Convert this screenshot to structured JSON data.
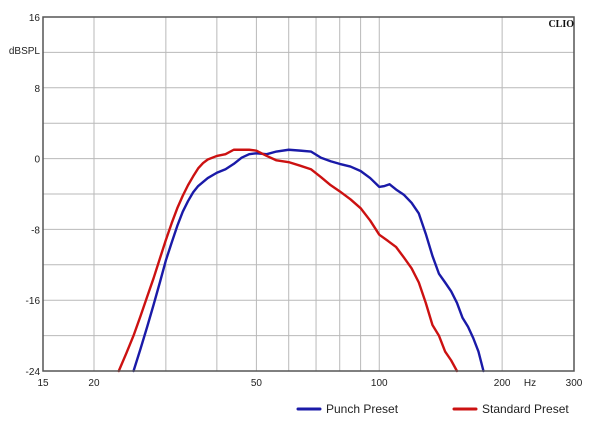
{
  "chart_data": {
    "type": "line",
    "title": "",
    "brand": "CLIO",
    "xlabel": "Hz",
    "ylabel": "dBSPL",
    "x_scale": "log",
    "xlim": [
      15,
      300
    ],
    "ylim": [
      -24,
      16
    ],
    "grid": true,
    "legend_position": "bottom-right",
    "x_tick_labels": [
      {
        "value": 15,
        "label": "15"
      },
      {
        "value": 20,
        "label": "20"
      },
      {
        "value": 50,
        "label": "50"
      },
      {
        "value": 100,
        "label": "100"
      },
      {
        "value": 200,
        "label": "200"
      },
      {
        "value": 300,
        "label": "300"
      }
    ],
    "y_tick_labels": [
      {
        "value": 16,
        "label": "16"
      },
      {
        "value": 8,
        "label": "8"
      },
      {
        "value": 0,
        "label": "0"
      },
      {
        "value": -8,
        "label": "-8"
      },
      {
        "value": -16,
        "label": "-16"
      },
      {
        "value": -24,
        "label": "-24"
      }
    ],
    "x_minor_grid": [
      30,
      40,
      60,
      70,
      80,
      90
    ],
    "y_grid": [
      -20,
      -12,
      -4,
      4,
      12
    ],
    "series": [
      {
        "name": "Punch Preset",
        "color": "#1a1aa8",
        "points": [
          [
            25,
            -24
          ],
          [
            26,
            -21.5
          ],
          [
            27,
            -19
          ],
          [
            28,
            -16.5
          ],
          [
            29,
            -14
          ],
          [
            30,
            -11.5
          ],
          [
            31,
            -9.5
          ],
          [
            32,
            -7.6
          ],
          [
            33,
            -6.0
          ],
          [
            34,
            -4.8
          ],
          [
            35,
            -3.8
          ],
          [
            36,
            -3.1
          ],
          [
            38,
            -2.2
          ],
          [
            40,
            -1.6
          ],
          [
            42,
            -1.2
          ],
          [
            44,
            -0.6
          ],
          [
            46,
            0.1
          ],
          [
            48,
            0.5
          ],
          [
            50,
            0.6
          ],
          [
            53,
            0.5
          ],
          [
            56,
            0.8
          ],
          [
            60,
            1.0
          ],
          [
            64,
            0.9
          ],
          [
            68,
            0.8
          ],
          [
            72,
            0.1
          ],
          [
            76,
            -0.3
          ],
          [
            80,
            -0.6
          ],
          [
            85,
            -0.9
          ],
          [
            90,
            -1.4
          ],
          [
            95,
            -2.2
          ],
          [
            100,
            -3.2
          ],
          [
            103,
            -3.1
          ],
          [
            106,
            -2.9
          ],
          [
            110,
            -3.5
          ],
          [
            115,
            -4.1
          ],
          [
            120,
            -5.0
          ],
          [
            125,
            -6.2
          ],
          [
            130,
            -8.5
          ],
          [
            135,
            -11.0
          ],
          [
            140,
            -13.0
          ],
          [
            145,
            -14.0
          ],
          [
            150,
            -15.0
          ],
          [
            155,
            -16.3
          ],
          [
            160,
            -18.0
          ],
          [
            165,
            -19.0
          ],
          [
            170,
            -20.3
          ],
          [
            175,
            -21.8
          ],
          [
            180,
            -24
          ]
        ]
      },
      {
        "name": "Standard Preset",
        "color": "#cc1111",
        "points": [
          [
            23,
            -24
          ],
          [
            24,
            -22
          ],
          [
            25,
            -20
          ],
          [
            26,
            -17.8
          ],
          [
            27,
            -15.6
          ],
          [
            28,
            -13.5
          ],
          [
            29,
            -11.3
          ],
          [
            30,
            -9.2
          ],
          [
            31,
            -7.3
          ],
          [
            32,
            -5.6
          ],
          [
            33,
            -4.2
          ],
          [
            34,
            -3.0
          ],
          [
            35,
            -2.0
          ],
          [
            36,
            -1.1
          ],
          [
            37,
            -0.5
          ],
          [
            38,
            -0.1
          ],
          [
            40,
            0.3
          ],
          [
            42,
            0.5
          ],
          [
            44,
            1.0
          ],
          [
            46,
            1.0
          ],
          [
            48,
            1.0
          ],
          [
            50,
            0.9
          ],
          [
            53,
            0.3
          ],
          [
            56,
            -0.2
          ],
          [
            60,
            -0.4
          ],
          [
            64,
            -0.8
          ],
          [
            68,
            -1.2
          ],
          [
            72,
            -2.1
          ],
          [
            76,
            -3.0
          ],
          [
            80,
            -3.7
          ],
          [
            85,
            -4.6
          ],
          [
            90,
            -5.6
          ],
          [
            95,
            -7.0
          ],
          [
            100,
            -8.6
          ],
          [
            105,
            -9.3
          ],
          [
            110,
            -10.0
          ],
          [
            115,
            -11.2
          ],
          [
            120,
            -12.4
          ],
          [
            125,
            -14.0
          ],
          [
            130,
            -16.3
          ],
          [
            135,
            -18.8
          ],
          [
            140,
            -20.0
          ],
          [
            145,
            -21.8
          ],
          [
            150,
            -22.8
          ],
          [
            155,
            -24
          ]
        ]
      }
    ]
  }
}
